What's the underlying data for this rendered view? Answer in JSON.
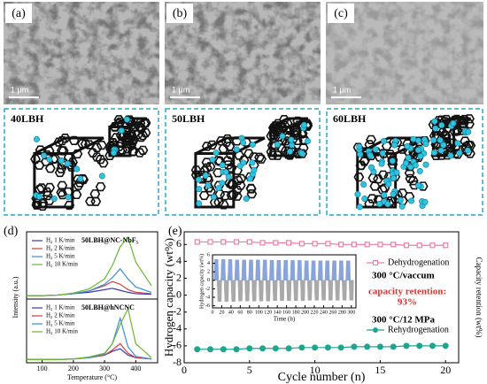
{
  "images": [
    {
      "label": "(a)",
      "scale": "1 μm"
    },
    {
      "label": "(b)",
      "scale": "1 μm"
    },
    {
      "label": "(c)",
      "scale": "1 μm"
    }
  ],
  "models": [
    {
      "label": "40LBH"
    },
    {
      "label": "50LBH"
    },
    {
      "label": "60LBH"
    }
  ],
  "chart_data": [
    {
      "type": "line",
      "panel_label": "(d)",
      "title": "50LBH@NC-NbF₅",
      "x": [
        50,
        100,
        150,
        200,
        250,
        300,
        325,
        350,
        375,
        400,
        450
      ],
      "xlim": [
        50,
        470
      ],
      "ylim": [
        0,
        1
      ],
      "series": [
        {
          "name": "H₂ 1 K/min",
          "color": "#3a3ab0",
          "values": [
            0.05,
            0.05,
            0.06,
            0.08,
            0.1,
            0.14,
            0.16,
            0.13,
            0.1,
            0.08,
            0.07
          ]
        },
        {
          "name": "H₂ 2 K/min",
          "color": "#d04040",
          "values": [
            0.05,
            0.05,
            0.06,
            0.08,
            0.12,
            0.2,
            0.26,
            0.22,
            0.14,
            0.1,
            0.08
          ]
        },
        {
          "name": "H₂ 5 K/min",
          "color": "#3a8fd8",
          "values": [
            0.05,
            0.05,
            0.06,
            0.08,
            0.12,
            0.22,
            0.32,
            0.45,
            0.3,
            0.18,
            0.1
          ]
        },
        {
          "name": "H₂ 10 K/min",
          "color": "#6ab82e",
          "values": [
            0.05,
            0.05,
            0.06,
            0.09,
            0.15,
            0.3,
            0.5,
            0.78,
            0.92,
            0.55,
            0.2
          ]
        }
      ]
    },
    {
      "type": "line",
      "title": "50LBH@hNCNC",
      "xlabel": "Temperature (°C)",
      "ylabel": "Intensity (a.u.)",
      "x": [
        50,
        100,
        150,
        200,
        250,
        300,
        325,
        350,
        375,
        400,
        450
      ],
      "xlim": [
        50,
        470
      ],
      "xticks": [
        100,
        200,
        300,
        400
      ],
      "ylim": [
        0,
        1
      ],
      "series": [
        {
          "name": "H₂ 1 K/min",
          "color": "#3a3ab0",
          "values": [
            0.05,
            0.05,
            0.05,
            0.06,
            0.08,
            0.12,
            0.18,
            0.22,
            0.12,
            0.08,
            0.06
          ]
        },
        {
          "name": "H₂ 2 K/min",
          "color": "#d04040",
          "values": [
            0.05,
            0.05,
            0.05,
            0.06,
            0.08,
            0.12,
            0.2,
            0.3,
            0.15,
            0.08,
            0.06
          ]
        },
        {
          "name": "H₂ 5 K/min",
          "color": "#3a8fd8",
          "values": [
            0.05,
            0.05,
            0.05,
            0.06,
            0.08,
            0.14,
            0.3,
            0.7,
            0.25,
            0.1,
            0.06
          ]
        },
        {
          "name": "H₂ 10 K/min",
          "color": "#6ab82e",
          "values": [
            0.05,
            0.05,
            0.05,
            0.06,
            0.09,
            0.15,
            0.3,
            0.6,
            0.85,
            0.3,
            0.08
          ]
        }
      ]
    },
    {
      "type": "line",
      "panel_label": "(e)",
      "xlabel": "Cycle number (n)",
      "ylabel": "Hydrogen capacity (wt%)",
      "y2label": "Capacity retention (wt%)",
      "x": [
        1,
        2,
        3,
        4,
        5,
        6,
        7,
        8,
        9,
        10,
        11,
        12,
        13,
        14,
        15,
        16,
        17,
        18,
        19,
        20
      ],
      "xlim": [
        0,
        21
      ],
      "xticks": [
        0,
        5,
        10,
        15,
        20
      ],
      "ylim": [
        -8,
        7.5
      ],
      "yticks": [
        -8,
        -6,
        -4,
        -2,
        0,
        2,
        4,
        6
      ],
      "series": [
        {
          "name": "Dehydrogenation",
          "color": "#f07ca0",
          "values": [
            6.3,
            6.3,
            6.3,
            6.3,
            6.3,
            6.2,
            6.2,
            6.2,
            6.1,
            6.1,
            6.1,
            6.0,
            6.0,
            6.0,
            6.0,
            6.0,
            5.9,
            5.9,
            5.9,
            5.9
          ]
        },
        {
          "name": "Rehydrogenation",
          "color": "#1fa58e",
          "values": [
            -6.4,
            -6.4,
            -6.4,
            -6.4,
            -6.3,
            -6.3,
            -6.3,
            -6.3,
            -6.2,
            -6.2,
            -6.2,
            -6.2,
            -6.1,
            -6.1,
            -6.1,
            -6.1,
            -6.0,
            -6.0,
            -6.0,
            -6.0
          ]
        }
      ],
      "annotations": [
        "300 °C/vaccum",
        "capacity retention:",
        "93%",
        "300 °C/12 MPa"
      ]
    },
    {
      "type": "sawtooth",
      "xlabel": "Time (h)",
      "ylabel": "Hydrogen capacity (wt%)",
      "xlim": [
        0,
        310
      ],
      "xticks": [
        0,
        20,
        40,
        60,
        80,
        100,
        120,
        140,
        160,
        180,
        200,
        220,
        240,
        260,
        280,
        300
      ],
      "ylim": [
        -6.5,
        6
      ],
      "yticks": [
        -6,
        -4,
        -2,
        0,
        2,
        4,
        6
      ],
      "series": [
        {
          "color": "#7d9bd8",
          "x": [
            8,
            23,
            38,
            53,
            68,
            83,
            98,
            113,
            128,
            143,
            158,
            173,
            188,
            203,
            218,
            233,
            248,
            263,
            278,
            293
          ],
          "values": [
            4.9,
            4.9,
            4.9,
            4.8,
            4.8,
            4.8,
            4.8,
            4.8,
            4.7,
            4.7,
            4.7,
            4.7,
            4.7,
            4.6,
            4.6,
            4.6,
            4.6,
            4.6,
            4.6,
            4.6
          ]
        },
        {
          "color": "#a0a0a0",
          "x": [
            15,
            30,
            45,
            60,
            75,
            90,
            105,
            120,
            135,
            150,
            165,
            180,
            195,
            210,
            225,
            240,
            255,
            270,
            285,
            300
          ],
          "values": [
            -5.0,
            -5.0,
            -5.0,
            -4.9,
            -4.9,
            -4.9,
            -4.9,
            -4.9,
            -4.8,
            -4.8,
            -4.8,
            -4.8,
            -4.8,
            -4.7,
            -4.7,
            -4.7,
            -4.7,
            -4.7,
            -4.7,
            -4.7
          ]
        }
      ]
    }
  ]
}
